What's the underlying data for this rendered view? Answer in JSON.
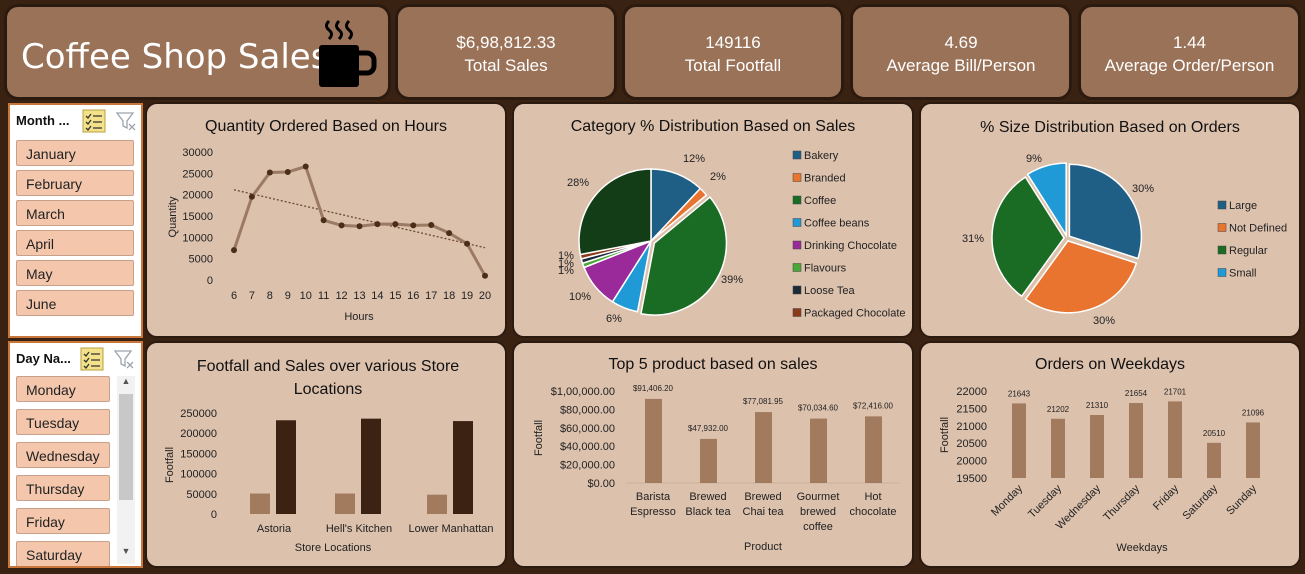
{
  "header": {
    "title": "Coffee Shop Sales"
  },
  "kpis": [
    {
      "value": "$6,98,812.33",
      "label": "Total Sales"
    },
    {
      "value": "149116",
      "label": "Total Footfall"
    },
    {
      "value": "4.69",
      "label": "Average Bill/Person"
    },
    {
      "value": "1.44",
      "label": "Average Order/Person"
    }
  ],
  "slicers": {
    "month": {
      "header": "Month ...",
      "items": [
        "January",
        "February",
        "March",
        "April",
        "May",
        "June"
      ]
    },
    "day": {
      "header": "Day Na...",
      "items": [
        "Monday",
        "Tuesday",
        "Wednesday",
        "Thursday",
        "Friday",
        "Saturday"
      ]
    }
  },
  "chart_data": [
    {
      "type": "line",
      "title": "Quantity Ordered Based on Hours",
      "xlabel": "Hours",
      "ylabel": "Quantity",
      "x": [
        6,
        7,
        8,
        9,
        10,
        11,
        12,
        13,
        14,
        15,
        16,
        17,
        18,
        19,
        20
      ],
      "values": [
        7000,
        19500,
        25200,
        25300,
        26600,
        14000,
        12800,
        12600,
        13100,
        13100,
        12800,
        12900,
        11000,
        8500,
        1000
      ],
      "trendline": true,
      "yticks": [
        "0",
        "5000",
        "10000",
        "15000",
        "20000",
        "25000",
        "30000"
      ],
      "ylim": [
        0,
        30000
      ]
    },
    {
      "type": "pie",
      "title": "Category % Distribution Based on Sales",
      "categories": [
        "Bakery",
        "Branded",
        "Coffee",
        "Coffee beans",
        "Drinking Chocolate",
        "Flavours",
        "Loose Tea",
        "Packaged Chocolate"
      ],
      "values": [
        12,
        2,
        39,
        6,
        10,
        1,
        1,
        1
      ],
      "extra_slice": 28,
      "labels": [
        "12%",
        "2%",
        "39%",
        "6%",
        "10%",
        "1%",
        "1%",
        "1%",
        "28%"
      ],
      "colors": [
        "#1f5f85",
        "#e8742f",
        "#1a6b24",
        "#1f9ad6",
        "#9a2a9a",
        "#4aa83a",
        "#1d2a3a",
        "#8b3a1a",
        "#123d17"
      ],
      "legend": "right"
    },
    {
      "type": "pie",
      "title": "% Size Distribution Based on Orders",
      "categories": [
        "Large",
        "Not Defined",
        "Regular",
        "Small"
      ],
      "values": [
        30,
        30,
        31,
        9
      ],
      "labels": [
        "30%",
        "30%",
        "31%",
        "9%"
      ],
      "colors": [
        "#1f5f85",
        "#e8742f",
        "#1a6b24",
        "#1f9ad6"
      ],
      "legend": "right"
    },
    {
      "type": "bar",
      "title": "Footfall and Sales over various Store Locations",
      "xlabel": "Store Locations",
      "ylabel": "Footfall",
      "categories": [
        "Astoria",
        "Hell's Kitchen",
        "Lower Manhattan"
      ],
      "series": [
        {
          "values": [
            50600,
            50700,
            47800
          ],
          "color": "#a27a5e"
        },
        {
          "values": [
            232000,
            236000,
            230000
          ],
          "color": "#3b2212"
        }
      ],
      "yticks": [
        "0",
        "50000",
        "100000",
        "150000",
        "200000",
        "250000"
      ],
      "ylim": [
        0,
        250000
      ]
    },
    {
      "type": "bar",
      "title": "Top 5 product based on sales",
      "xlabel": "Product",
      "ylabel": "Footfall",
      "categories": [
        "Barista Espresso",
        "Brewed Black tea",
        "Brewed Chai tea",
        "Gourmet brewed coffee",
        "Hot chocolate"
      ],
      "category_lines": [
        [
          "Barista",
          "Espresso"
        ],
        [
          "Brewed",
          "Black tea"
        ],
        [
          "Brewed",
          "Chai tea"
        ],
        [
          "Gourmet",
          "brewed",
          "coffee"
        ],
        [
          "Hot",
          "chocolate"
        ]
      ],
      "values": [
        91406.2,
        47932,
        77081.95,
        70034.6,
        72416
      ],
      "data_labels": [
        "$91,406.20",
        "$47,932.00",
        "$77,081.95",
        "$70,034.60",
        "$72,416.00"
      ],
      "yticks": [
        "$0.00",
        "$20,000.00",
        "$40,000.00",
        "$60,000.00",
        "$80,000.00",
        "$1,00,000.00"
      ],
      "ylim": [
        0,
        100000
      ],
      "color": "#a27a5e"
    },
    {
      "type": "bar",
      "title": "Orders on Weekdays",
      "xlabel": "Weekdays",
      "ylabel": "Footfall",
      "categories": [
        "Monday",
        "Tuesday",
        "Wednesday",
        "Thursday",
        "Friday",
        "Saturday",
        "Sunday"
      ],
      "values": [
        21643,
        21202,
        21310,
        21654,
        21701,
        20510,
        21096
      ],
      "data_labels": [
        "21643",
        "21202",
        "21310",
        "21654",
        "21701",
        "20510",
        "21096"
      ],
      "yticks": [
        "19500",
        "20000",
        "20500",
        "21000",
        "21500",
        "22000"
      ],
      "ylim": [
        19500,
        22000
      ],
      "color": "#a27a5e"
    }
  ]
}
